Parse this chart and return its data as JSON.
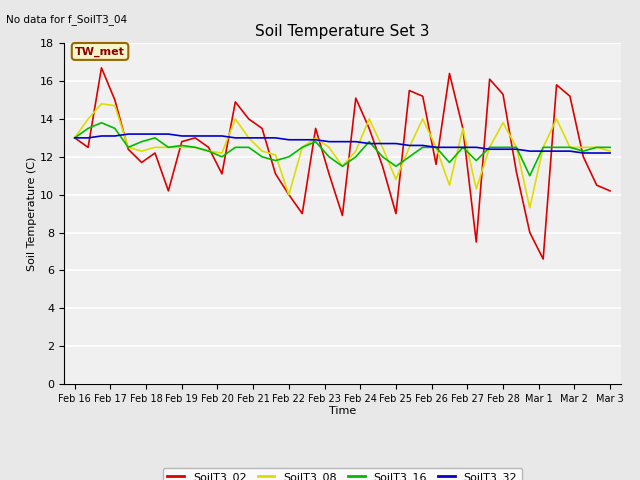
{
  "title": "Soil Temperature Set 3",
  "xlabel": "Time",
  "ylabel": "Soil Temperature (C)",
  "note": "No data for f_SoilT3_04",
  "tw_met_label": "TW_met",
  "ylim": [
    0,
    18
  ],
  "yticks": [
    0,
    2,
    4,
    6,
    8,
    10,
    12,
    14,
    16,
    18
  ],
  "bg_color": "#e8e8e8",
  "plot_bg_color": "#f0f0f0",
  "legend_entries": [
    "SoilT3_02",
    "SoilT3_08",
    "SoilT3_16",
    "SoilT3_32"
  ],
  "legend_colors": [
    "#dd0000",
    "#dddd00",
    "#00bb00",
    "#0000cc"
  ],
  "x_labels": [
    "Feb 16",
    "Feb 17",
    "Feb 18",
    "Feb 19",
    "Feb 20",
    "Feb 21",
    "Feb 22",
    "Feb 23",
    "Feb 24",
    "Feb 25",
    "Feb 26",
    "Feb 27",
    "Feb 28",
    "Mar 1",
    "Mar 2",
    "Mar 3"
  ],
  "SoilT3_02": [
    13.0,
    12.5,
    16.7,
    15.0,
    12.4,
    11.7,
    12.2,
    10.2,
    12.8,
    13.0,
    12.5,
    11.1,
    14.9,
    14.0,
    13.5,
    11.1,
    10.0,
    9.0,
    13.5,
    11.1,
    8.9,
    15.1,
    13.5,
    11.5,
    9.0,
    15.5,
    15.2,
    11.6,
    16.4,
    13.5,
    7.5,
    16.1,
    15.3,
    11.2,
    8.0,
    6.6,
    15.8,
    15.2,
    12.0,
    10.5,
    10.2
  ],
  "SoilT3_08": [
    13.0,
    14.0,
    14.8,
    14.7,
    12.5,
    12.3,
    12.5,
    12.5,
    12.5,
    12.5,
    12.3,
    12.2,
    14.0,
    13.0,
    12.3,
    12.1,
    10.0,
    12.5,
    13.0,
    12.5,
    11.5,
    12.3,
    14.0,
    12.5,
    10.8,
    12.5,
    14.0,
    12.5,
    10.5,
    13.5,
    10.3,
    12.5,
    13.8,
    12.5,
    9.3,
    12.5,
    14.0,
    12.5,
    12.5,
    12.5,
    12.3
  ],
  "SoilT3_16": [
    13.0,
    13.5,
    13.8,
    13.5,
    12.5,
    12.8,
    13.0,
    12.5,
    12.6,
    12.5,
    12.3,
    12.0,
    12.5,
    12.5,
    12.0,
    11.8,
    12.0,
    12.5,
    12.8,
    12.0,
    11.5,
    12.0,
    12.8,
    12.0,
    11.5,
    12.0,
    12.5,
    12.5,
    11.7,
    12.5,
    11.8,
    12.5,
    12.5,
    12.5,
    11.0,
    12.5,
    12.5,
    12.5,
    12.3,
    12.5,
    12.5
  ],
  "SoilT3_32": [
    13.0,
    13.0,
    13.1,
    13.1,
    13.2,
    13.2,
    13.2,
    13.2,
    13.1,
    13.1,
    13.1,
    13.1,
    13.0,
    13.0,
    13.0,
    13.0,
    12.9,
    12.9,
    12.9,
    12.8,
    12.8,
    12.8,
    12.7,
    12.7,
    12.7,
    12.6,
    12.6,
    12.5,
    12.5,
    12.5,
    12.5,
    12.4,
    12.4,
    12.4,
    12.3,
    12.3,
    12.3,
    12.3,
    12.2,
    12.2,
    12.2
  ]
}
